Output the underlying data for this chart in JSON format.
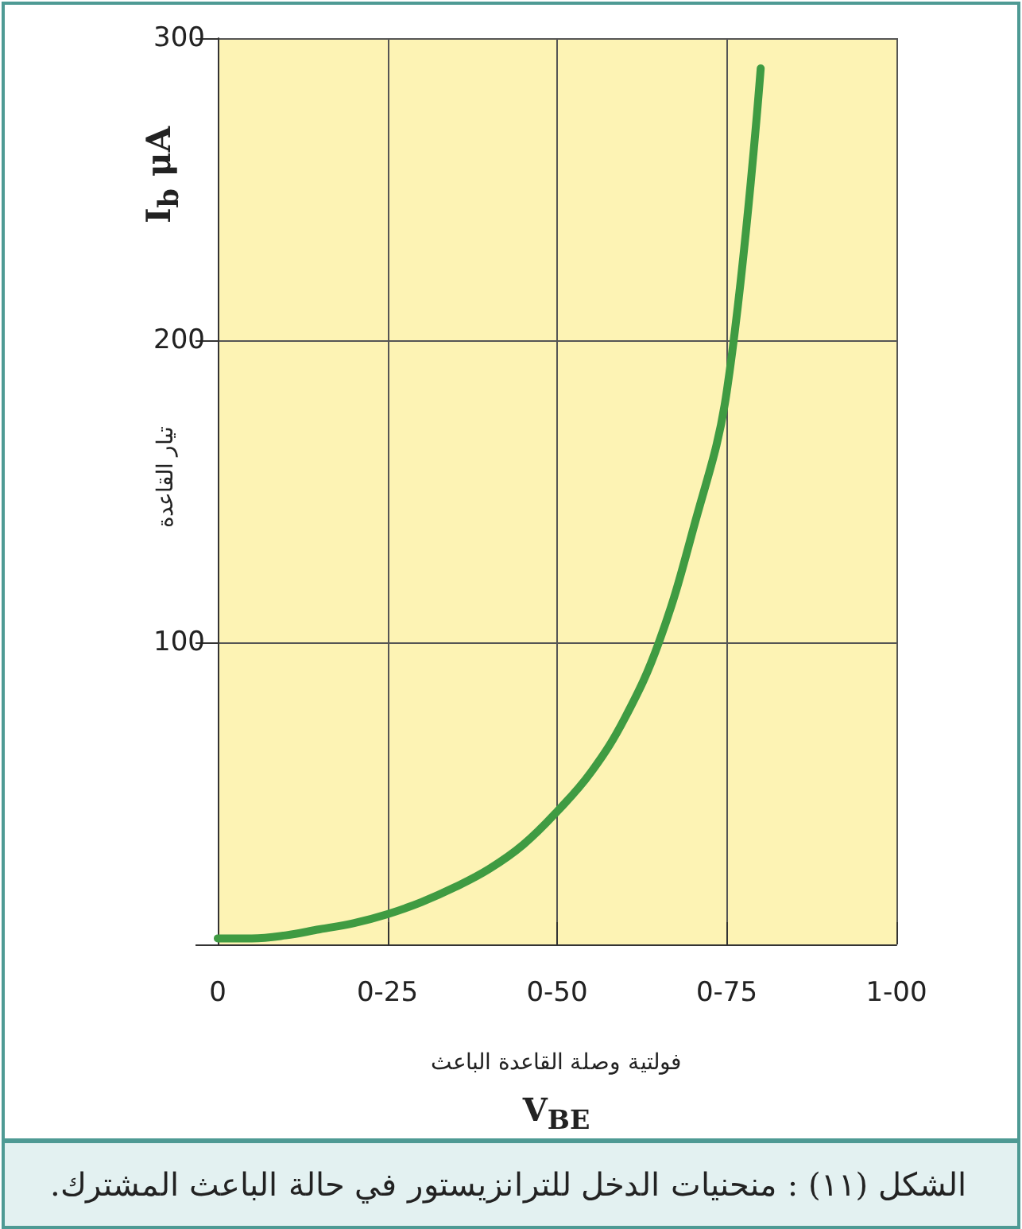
{
  "chart_data": {
    "type": "line",
    "ylabel": "I$_{b}$ μA",
    "xlabel": "V$_{BE}$",
    "annotations": [
      "تيار القاعدة",
      "فولتية وصلة القاعدة الباعث",
      "الشكل (١١) : منحنيات الدخل للترانزيستور في حالة الباعث المشترك."
    ],
    "categories": [
      "0",
      null,
      null,
      null,
      null,
      "0-25",
      null,
      null,
      null,
      null,
      "0-50",
      null,
      null,
      null,
      null,
      "0-75",
      null,
      null,
      null,
      null,
      "1-00"
    ],
    "series": [
      {
        "color": "#3f9b42",
        "values": [
          2,
          2,
          3,
          5,
          7,
          10,
          14,
          19,
          25,
          33,
          44,
          57,
          75,
          100,
          137,
          183,
          290,
          null,
          null,
          null,
          null
        ]
      }
    ],
    "ylim": [
      0,
      300
    ],
    "yticks": [
      {
        "value": 0,
        "label": null
      },
      100,
      200,
      300
    ],
    "grid": true,
    "marker": "none",
    "line_style": "solid"
  }
}
